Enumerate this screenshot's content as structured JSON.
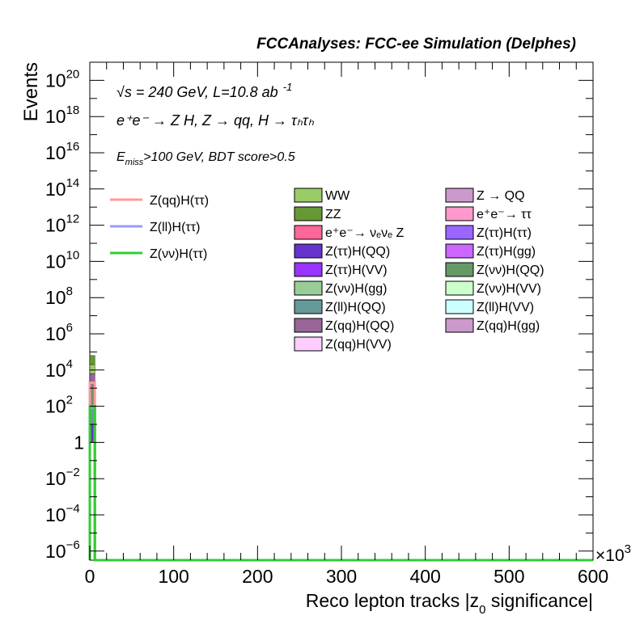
{
  "chart_data": {
    "type": "bar",
    "title": "FCCAnalyses: FCC-ee Simulation (Delphes)",
    "xlabel": "Reco lepton tracks |z",
    "xlabel_sub": "0",
    "xlabel_tail": " significance|",
    "ylabel": "Events",
    "x_multiplier_base": "×10",
    "x_multiplier_exp": "3",
    "xlim": [
      0,
      600
    ],
    "ylog": true,
    "ylim_exp": [
      -6.5,
      21
    ],
    "x_ticks": [
      {
        "value": 0,
        "label": "0"
      },
      {
        "value": 100,
        "label": "100"
      },
      {
        "value": 200,
        "label": "200"
      },
      {
        "value": 300,
        "label": "300"
      },
      {
        "value": 400,
        "label": "400"
      },
      {
        "value": 500,
        "label": "500"
      },
      {
        "value": 600,
        "label": "600"
      }
    ],
    "y_ticks": [
      {
        "exp": -6,
        "base": "10",
        "sup": "−6"
      },
      {
        "exp": -4,
        "base": "10",
        "sup": "−4"
      },
      {
        "exp": -2,
        "base": "10",
        "sup": "−2"
      },
      {
        "exp": 0,
        "base": "1",
        "sup": ""
      },
      {
        "exp": 2,
        "base": "10",
        "sup": "2"
      },
      {
        "exp": 4,
        "base": "10",
        "sup": "4"
      },
      {
        "exp": 6,
        "base": "10",
        "sup": "6"
      },
      {
        "exp": 8,
        "base": "10",
        "sup": "8"
      },
      {
        "exp": 10,
        "base": "10",
        "sup": "10"
      },
      {
        "exp": 12,
        "base": "10",
        "sup": "12"
      },
      {
        "exp": 14,
        "base": "10",
        "sup": "14"
      },
      {
        "exp": 16,
        "base": "10",
        "sup": "16"
      },
      {
        "exp": 18,
        "base": "10",
        "sup": "18"
      },
      {
        "exp": 20,
        "base": "10",
        "sup": "20"
      }
    ],
    "annotations": {
      "line1": "√s = 240 GeV, L=10.8 ab",
      "line1_sup": "-1",
      "line2": "e⁺e⁻ → Z H, Z → qq, H → τₕτₕ",
      "line3_a": "E",
      "line3_sub": "miss",
      "line3_b": ">100 GeV, BDT score>0.5"
    },
    "signal_legend": [
      {
        "name": "Z(qq)H(ττ)",
        "color": "#ff9999"
      },
      {
        "name": "Z(ll)H(ττ)",
        "color": "#9999ff"
      },
      {
        "name": "Z(νν)H(ττ)",
        "color": "#33cc33"
      }
    ],
    "background_legend": [
      {
        "name": "WW",
        "color": "#99cc66"
      },
      {
        "name": "Z → QQ",
        "color": "#cc99cc"
      },
      {
        "name": "ZZ",
        "color": "#669933"
      },
      {
        "name": "e⁺e⁻→ ττ",
        "color": "#ff99cc"
      },
      {
        "name": "e⁺e⁻→ νₑνₑ Z",
        "color": "#ff6699"
      },
      {
        "name": "Z(ττ)H(ττ)",
        "color": "#9966ff"
      },
      {
        "name": "Z(ττ)H(QQ)",
        "color": "#6633cc"
      },
      {
        "name": "Z(ττ)H(gg)",
        "color": "#cc66ff"
      },
      {
        "name": "Z(ττ)H(VV)",
        "color": "#9933ff"
      },
      {
        "name": "Z(νν)H(QQ)",
        "color": "#669966"
      },
      {
        "name": "Z(νν)H(gg)",
        "color": "#99cc99"
      },
      {
        "name": "Z(νν)H(VV)",
        "color": "#ccffcc"
      },
      {
        "name": "Z(ll)H(QQ)",
        "color": "#669999"
      },
      {
        "name": "Z(ll)H(VV)",
        "color": "#ccffff"
      },
      {
        "name": "Z(qq)H(QQ)",
        "color": "#996699"
      },
      {
        "name": "Z(qq)H(gg)",
        "color": "#cc99cc"
      },
      {
        "name": "Z(qq)H(VV)",
        "color": "#ffccff"
      }
    ],
    "stack_bin": {
      "x_range": [
        0,
        6
      ],
      "segments": [
        {
          "series": "ZZ",
          "color": "#669933",
          "from_exp": 4.3,
          "to_exp": 4.8
        },
        {
          "series": "WW",
          "color": "#99cc66",
          "from_exp": 3.8,
          "to_exp": 4.3
        },
        {
          "series": "Z(qq)H(QQ)",
          "color": "#996699",
          "from_exp": 3.0,
          "to_exp": 3.8
        },
        {
          "series": "Z(νν)H(QQ)",
          "color": "#669966",
          "from_exp": 2.0,
          "to_exp": 3.0
        },
        {
          "series": "Z(ll)H(QQ)",
          "color": "#669999",
          "from_exp": 1.0,
          "to_exp": 2.0
        },
        {
          "series": "Z(ττ)H(QQ)",
          "color": "#6633cc",
          "from_exp": 0.0,
          "to_exp": 1.0
        }
      ]
    },
    "signal_lines": [
      {
        "name": "Z(qq)H(ττ)",
        "color": "#ff9999",
        "bin_x": [
          0,
          6
        ],
        "value_exp": 3.3
      },
      {
        "name": "Z(ll)H(ττ)",
        "color": "#9999ff",
        "bin_x": [
          0,
          6
        ],
        "value_exp": 1.9
      },
      {
        "name": "Z(νν)H(ττ)",
        "color": "#33cc33",
        "bin_x": [
          0,
          6
        ],
        "value_exp": 2.0
      }
    ]
  }
}
